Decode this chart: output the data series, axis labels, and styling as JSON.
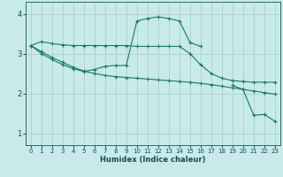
{
  "xlabel": "Humidex (Indice chaleur)",
  "bg_color": "#c8eaea",
  "grid_color": "#a8d0d0",
  "line_color": "#1a7868",
  "xlim": [
    -0.5,
    23.5
  ],
  "ylim": [
    0.7,
    4.3
  ],
  "xticks": [
    0,
    1,
    2,
    3,
    4,
    5,
    6,
    7,
    8,
    9,
    10,
    11,
    12,
    13,
    14,
    15,
    16,
    17,
    18,
    19,
    20,
    21,
    22,
    23
  ],
  "yticks": [
    1,
    2,
    3,
    4
  ],
  "series": [
    {
      "x": [
        0,
        1,
        2,
        3,
        4,
        5,
        6,
        7,
        8,
        9,
        10,
        11,
        12,
        13,
        14,
        15,
        16,
        17,
        18,
        19,
        20,
        21,
        22,
        23
      ],
      "y": [
        3.2,
        3.3,
        3.25,
        3.22,
        3.2,
        3.2,
        3.2,
        3.2,
        3.2,
        3.2,
        3.18,
        3.18,
        3.18,
        3.18,
        3.18,
        3.0,
        2.72,
        2.5,
        2.38,
        2.32,
        2.3,
        2.28,
        2.28,
        2.28
      ]
    },
    {
      "x": [
        0,
        1,
        2,
        3,
        4,
        5,
        6,
        7,
        8,
        9,
        10,
        11,
        12,
        13,
        14,
        15,
        16,
        17,
        18,
        19,
        20,
        21,
        22,
        23
      ],
      "y": [
        3.2,
        3.05,
        2.9,
        2.78,
        2.66,
        2.56,
        2.5,
        2.45,
        2.42,
        2.4,
        2.38,
        2.36,
        2.34,
        2.32,
        2.3,
        2.28,
        2.25,
        2.22,
        2.18,
        2.14,
        2.1,
        2.06,
        2.02,
        1.98
      ]
    },
    {
      "x": [
        0,
        1,
        2,
        3,
        4,
        5,
        6,
        7,
        8,
        9,
        10,
        11,
        12,
        13,
        14,
        15,
        16,
        17,
        18,
        19,
        20,
        21,
        22,
        23
      ],
      "y": [
        3.2,
        3.0,
        2.85,
        2.72,
        2.62,
        2.55,
        2.6,
        2.68,
        2.7,
        2.7,
        3.82,
        3.88,
        3.92,
        3.88,
        3.82,
        3.28,
        3.18,
        null,
        null,
        null,
        null,
        null,
        null,
        null
      ]
    },
    {
      "x": [
        19,
        20,
        21,
        22,
        23
      ],
      "y": [
        2.2,
        2.1,
        1.45,
        1.47,
        1.3
      ]
    }
  ]
}
